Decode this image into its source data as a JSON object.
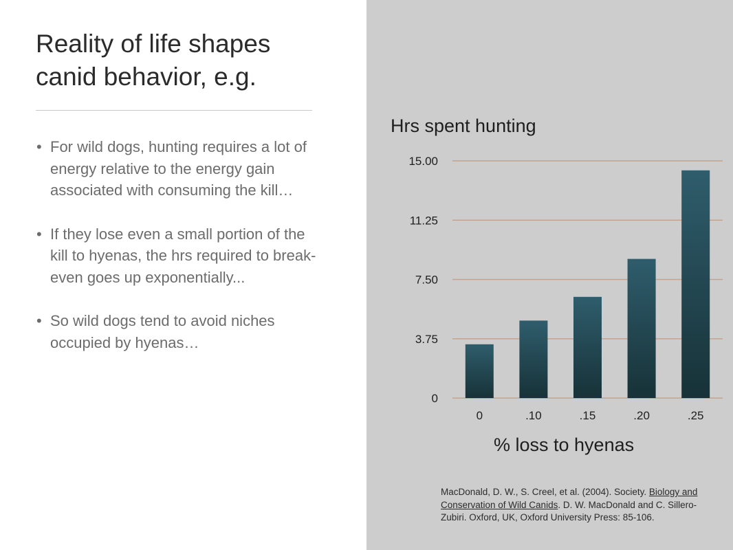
{
  "slide": {
    "title": "Reality of life shapes\ncanid behavior, e.g.",
    "bullets": [
      "For wild dogs, hunting requires a lot of energy relative to the energy gain associated with consuming the kill…",
      "If they lose even a small portion of the kill to hyenas, the hrs required to break-even goes up exponentially...",
      "So wild dogs tend to avoid niches occupied by hyenas…"
    ],
    "bullet_symbol": "•"
  },
  "chart_data": {
    "type": "bar",
    "title": "Hrs spent hunting",
    "xlabel": "% loss to hyenas",
    "ylabel": "",
    "categories": [
      "0",
      ".10",
      ".15",
      ".20",
      ".25"
    ],
    "values": [
      3.4,
      4.9,
      6.4,
      8.8,
      14.4
    ],
    "ylim": [
      0,
      15
    ],
    "y_ticks": [
      0,
      3.75,
      7.5,
      11.25,
      15
    ],
    "y_tick_labels": [
      "0",
      "3.75",
      "7.50",
      "11.25",
      "15.00"
    ],
    "grid": true,
    "colors": {
      "bar_top": "#2f5d6c",
      "bar_bottom": "#173238",
      "grid": "#c4a48e"
    }
  },
  "citation": {
    "part1": "MacDonald, D. W., S. Creel, et al. (2004). Society. ",
    "book_title": "Biology and Conservation of Wild Canids",
    "part2": ". D. W. MacDonald and C. Sillero-Zubiri. Oxford, UK, Oxford University Press: 85-106."
  }
}
